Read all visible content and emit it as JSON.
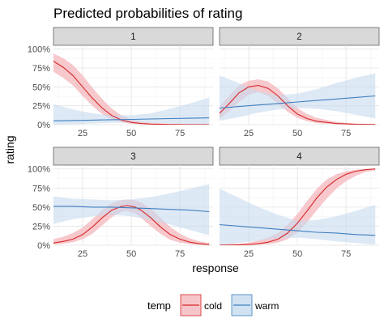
{
  "chart_data": {
    "type": "line",
    "title": "Predicted probabilities of rating",
    "xlabel": "response",
    "ylabel": "rating",
    "xlim": [
      10,
      92
    ],
    "ylim": [
      0,
      1.05
    ],
    "x_ticks": [
      25,
      50,
      75
    ],
    "y_ticks": [
      0,
      0.25,
      0.5,
      0.75,
      1.0
    ],
    "y_tick_labels": [
      "0%",
      "25%",
      "50%",
      "75%",
      "100%"
    ],
    "legend": {
      "title": "temp",
      "position": "bottom",
      "entries": [
        "cold",
        "warm"
      ]
    },
    "colors": {
      "cold": "#d62728",
      "cold_fill": "#f4b6bb",
      "warm": "#3f7fbf",
      "warm_fill": "#c6dbef"
    },
    "grid": true,
    "panels": [
      {
        "label": "1",
        "series": [
          {
            "name": "cold",
            "x": [
              10,
              15,
              20,
              25,
              30,
              35,
              40,
              45,
              50,
              55,
              60,
              70,
              80,
              90
            ],
            "y": [
              0.84,
              0.76,
              0.65,
              0.5,
              0.35,
              0.22,
              0.12,
              0.06,
              0.03,
              0.015,
              0.008,
              0.003,
              0.001,
              0.0005
            ],
            "lower": [
              0.7,
              0.62,
              0.52,
              0.38,
              0.25,
              0.14,
              0.07,
              0.03,
              0.012,
              0.005,
              0.002,
              0.0,
              0.0,
              0.0
            ],
            "upper": [
              0.94,
              0.88,
              0.79,
              0.65,
              0.49,
              0.34,
              0.21,
              0.12,
              0.07,
              0.04,
              0.025,
              0.01,
              0.005,
              0.003
            ]
          },
          {
            "name": "warm",
            "x": [
              10,
              20,
              30,
              40,
              50,
              60,
              70,
              80,
              90
            ],
            "y": [
              0.05,
              0.055,
              0.06,
              0.065,
              0.07,
              0.075,
              0.08,
              0.085,
              0.09
            ],
            "lower": [
              0.0,
              0.005,
              0.015,
              0.025,
              0.03,
              0.025,
              0.015,
              0.005,
              0.0
            ],
            "upper": [
              0.27,
              0.2,
              0.15,
              0.12,
              0.12,
              0.15,
              0.21,
              0.28,
              0.36
            ]
          }
        ]
      },
      {
        "label": "2",
        "series": [
          {
            "name": "cold",
            "x": [
              10,
              15,
              20,
              25,
              30,
              35,
              40,
              45,
              50,
              55,
              60,
              70,
              80,
              90
            ],
            "y": [
              0.15,
              0.28,
              0.42,
              0.5,
              0.52,
              0.48,
              0.38,
              0.25,
              0.14,
              0.08,
              0.045,
              0.015,
              0.005,
              0.002
            ],
            "lower": [
              0.08,
              0.18,
              0.3,
              0.4,
              0.43,
              0.38,
              0.28,
              0.17,
              0.09,
              0.045,
              0.02,
              0.005,
              0.0,
              0.0
            ],
            "upper": [
              0.24,
              0.38,
              0.52,
              0.58,
              0.6,
              0.57,
              0.48,
              0.35,
              0.22,
              0.14,
              0.09,
              0.035,
              0.015,
              0.008
            ]
          },
          {
            "name": "warm",
            "x": [
              10,
              20,
              30,
              40,
              50,
              60,
              70,
              80,
              90
            ],
            "y": [
              0.22,
              0.24,
              0.26,
              0.28,
              0.3,
              0.32,
              0.34,
              0.36,
              0.38
            ],
            "lower": [
              0.05,
              0.1,
              0.16,
              0.2,
              0.22,
              0.21,
              0.18,
              0.13,
              0.08
            ],
            "upper": [
              0.65,
              0.55,
              0.44,
              0.39,
              0.41,
              0.47,
              0.55,
              0.62,
              0.68
            ]
          }
        ]
      },
      {
        "label": "3",
        "series": [
          {
            "name": "cold",
            "x": [
              10,
              15,
              20,
              25,
              30,
              35,
              40,
              45,
              48,
              52,
              55,
              60,
              65,
              70,
              75,
              80,
              85,
              90
            ],
            "y": [
              0.03,
              0.05,
              0.08,
              0.14,
              0.24,
              0.36,
              0.46,
              0.51,
              0.52,
              0.5,
              0.46,
              0.36,
              0.24,
              0.14,
              0.08,
              0.04,
              0.02,
              0.01
            ],
            "lower": [
              0.01,
              0.02,
              0.04,
              0.08,
              0.15,
              0.26,
              0.37,
              0.44,
              0.45,
              0.42,
              0.36,
              0.25,
              0.15,
              0.07,
              0.035,
              0.015,
              0.005,
              0.0
            ],
            "upper": [
              0.08,
              0.11,
              0.16,
              0.23,
              0.34,
              0.46,
              0.55,
              0.59,
              0.6,
              0.59,
              0.56,
              0.48,
              0.36,
              0.24,
              0.15,
              0.09,
              0.05,
              0.03
            ]
          },
          {
            "name": "warm",
            "x": [
              10,
              20,
              30,
              40,
              50,
              60,
              70,
              80,
              90
            ],
            "y": [
              0.51,
              0.51,
              0.5,
              0.5,
              0.49,
              0.48,
              0.47,
              0.46,
              0.44
            ],
            "lower": [
              0.28,
              0.34,
              0.38,
              0.4,
              0.38,
              0.33,
              0.27,
              0.2,
              0.13
            ],
            "upper": [
              0.64,
              0.61,
              0.6,
              0.59,
              0.6,
              0.63,
              0.68,
              0.74,
              0.8
            ]
          }
        ]
      },
      {
        "label": "4",
        "series": [
          {
            "name": "cold",
            "x": [
              10,
              20,
              25,
              30,
              35,
              40,
              45,
              50,
              55,
              60,
              65,
              70,
              75,
              80,
              85,
              90
            ],
            "y": [
              0.001,
              0.005,
              0.01,
              0.02,
              0.04,
              0.08,
              0.16,
              0.29,
              0.45,
              0.62,
              0.76,
              0.86,
              0.93,
              0.97,
              0.99,
              1.0
            ],
            "lower": [
              0.0,
              0.0,
              0.003,
              0.008,
              0.015,
              0.035,
              0.08,
              0.17,
              0.3,
              0.46,
              0.61,
              0.74,
              0.84,
              0.91,
              0.96,
              0.98
            ],
            "upper": [
              0.01,
              0.02,
              0.035,
              0.06,
              0.1,
              0.16,
              0.27,
              0.41,
              0.58,
              0.74,
              0.86,
              0.93,
              0.97,
              0.99,
              1.0,
              1.0
            ]
          },
          {
            "name": "warm",
            "x": [
              10,
              20,
              30,
              40,
              50,
              60,
              70,
              80,
              90
            ],
            "y": [
              0.27,
              0.25,
              0.23,
              0.21,
              0.19,
              0.17,
              0.16,
              0.14,
              0.13
            ],
            "lower": [
              0.0,
              0.03,
              0.06,
              0.09,
              0.1,
              0.08,
              0.05,
              0.03,
              0.01
            ],
            "upper": [
              0.74,
              0.62,
              0.5,
              0.4,
              0.32,
              0.33,
              0.38,
              0.45,
              0.53
            ]
          }
        ]
      }
    ]
  }
}
